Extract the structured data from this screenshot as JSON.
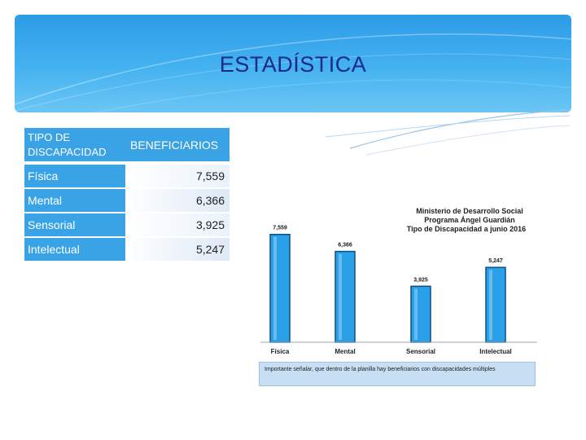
{
  "slide": {
    "title": "ESTADÍSTICA"
  },
  "table": {
    "header_col1": "TIPO DE DISCAPACIDAD",
    "header_col2": "BENEFICIARIOS",
    "rows": [
      {
        "label": "Física",
        "value": "7,559"
      },
      {
        "label": "Mental",
        "value": "6,366"
      },
      {
        "label": "Sensorial",
        "value": "3,925"
      },
      {
        "label": "Intelectual",
        "value": "5,247"
      }
    ]
  },
  "chart_data": {
    "type": "bar",
    "title": "Ministerio de Desarrollo Social",
    "subtitle_1": "Programa Ángel Guardián",
    "subtitle_2": "Tipo de Discapacidad a junio 2016",
    "categories": [
      "Física",
      "Mental",
      "Sensorial",
      "Intelectual"
    ],
    "values": [
      7559,
      6366,
      3925,
      5247
    ],
    "data_labels": [
      "7,559",
      "6,366",
      "3,925",
      "5,247"
    ],
    "xlabel": "",
    "ylabel": "",
    "ylim": [
      0,
      8000
    ],
    "grid": false,
    "colors": {
      "bar": "#2aa0e8",
      "bar_edge": "#0a4f86",
      "axis": "#9aa8b5"
    },
    "footnote": "Importante señalar, que dentro de la planilla hay beneficiarios con discapacidades múltiples"
  }
}
